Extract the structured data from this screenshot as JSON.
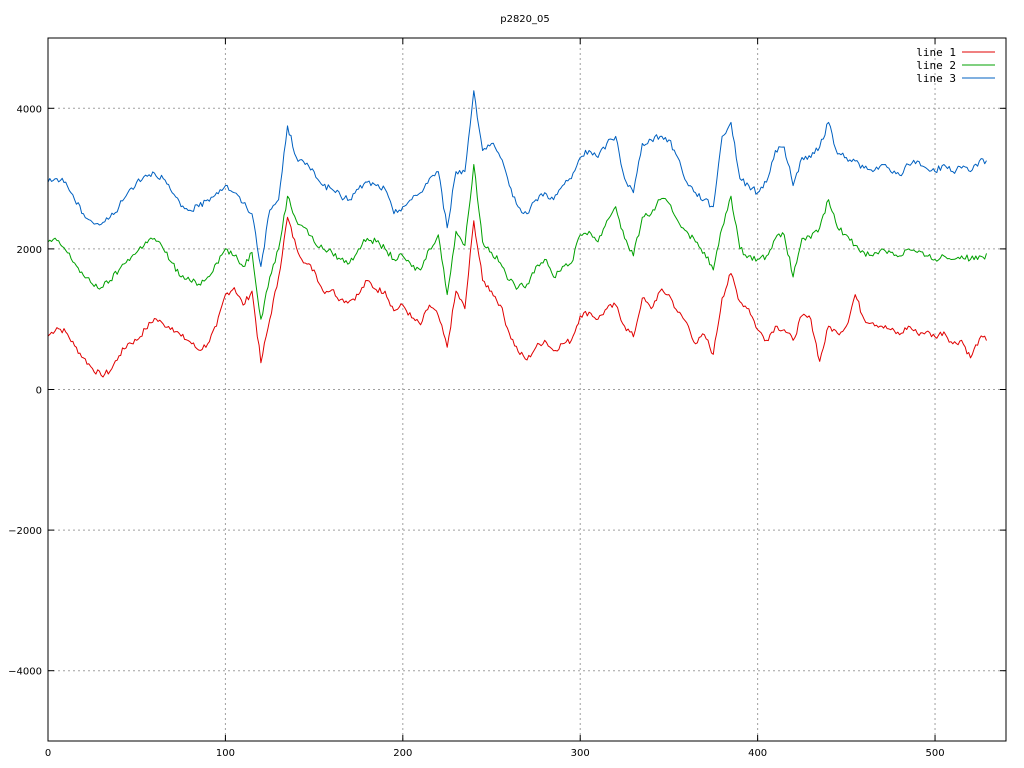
{
  "chart_data": {
    "type": "line",
    "title": "p2820_05",
    "xlabel": "",
    "ylabel": "",
    "xlim": [
      0,
      540
    ],
    "ylim": [
      -5000,
      5000
    ],
    "x_ticks": [
      0,
      100,
      200,
      300,
      400,
      500
    ],
    "y_ticks": [
      -4000,
      -2000,
      0,
      2000,
      4000
    ],
    "grid": true,
    "legend_position": "top-right",
    "x_step": 5,
    "series": [
      {
        "name": "line 1",
        "color": "#e00000",
        "values": [
          760,
          880,
          820,
          620,
          450,
          300,
          200,
          260,
          480,
          650,
          700,
          860,
          1010,
          930,
          880,
          760,
          680,
          560,
          650,
          900,
          1350,
          1450,
          1200,
          1400,
          380,
          1000,
          1600,
          2450,
          2020,
          1800,
          1700,
          1400,
          1420,
          1280,
          1260,
          1350,
          1550,
          1420,
          1400,
          1120,
          1200,
          1020,
          920,
          1200,
          1050,
          600,
          1400,
          1150,
          2400,
          1550,
          1400,
          1200,
          800,
          540,
          420,
          600,
          700,
          550,
          650,
          700,
          1050,
          1100,
          1000,
          1150,
          1200,
          900,
          750,
          1300,
          1150,
          1400,
          1350,
          1100,
          950,
          650,
          780,
          500,
          1300,
          1650,
          1250,
          1150,
          850,
          700,
          900,
          850,
          700,
          1050,
          1000,
          400,
          900,
          800,
          900,
          1350,
          1000,
          950,
          900,
          850,
          780,
          900,
          800,
          820,
          750,
          820,
          650,
          700,
          450,
          720
        ]
      },
      {
        "name": "line 2",
        "color": "#00a000",
        "values": [
          2100,
          2120,
          1980,
          1800,
          1620,
          1500,
          1450,
          1550,
          1700,
          1850,
          1950,
          2100,
          2150,
          2000,
          1800,
          1600,
          1550,
          1500,
          1600,
          1800,
          2000,
          1900,
          1750,
          1950,
          1000,
          1600,
          2000,
          2750,
          2400,
          2300,
          2100,
          2000,
          1950,
          1850,
          1800,
          2000,
          2150,
          2100,
          2000,
          1850,
          1900,
          1750,
          1700,
          2000,
          2200,
          1350,
          2250,
          2050,
          3200,
          2100,
          1950,
          1800,
          1550,
          1450,
          1500,
          1750,
          1850,
          1600,
          1750,
          1800,
          2200,
          2250,
          2100,
          2400,
          2600,
          2150,
          1900,
          2450,
          2500,
          2700,
          2650,
          2400,
          2250,
          2100,
          1950,
          1700,
          2300,
          2750,
          2000,
          1900,
          1850,
          1900,
          2150,
          2200,
          1600,
          2150,
          2150,
          2300,
          2700,
          2300,
          2200,
          2050,
          1950,
          1900,
          2000,
          1950,
          1900,
          2000,
          1950,
          1900,
          1850,
          1900,
          1850,
          1900,
          1850,
          1900
        ]
      },
      {
        "name": "line 3",
        "color": "#0060c0",
        "values": [
          2950,
          3000,
          2950,
          2700,
          2500,
          2380,
          2350,
          2450,
          2600,
          2800,
          2950,
          3050,
          3080,
          3000,
          2800,
          2600,
          2550,
          2600,
          2700,
          2800,
          2900,
          2800,
          2650,
          2500,
          1750,
          2550,
          2700,
          3750,
          3300,
          3200,
          3100,
          2900,
          2850,
          2750,
          2700,
          2850,
          2950,
          2900,
          2850,
          2500,
          2600,
          2700,
          2800,
          3000,
          3100,
          2300,
          3100,
          3100,
          4250,
          3400,
          3500,
          3300,
          2900,
          2600,
          2500,
          2700,
          2800,
          2700,
          2900,
          3000,
          3300,
          3400,
          3300,
          3500,
          3600,
          3000,
          2800,
          3500,
          3550,
          3600,
          3550,
          3300,
          2950,
          2800,
          2700,
          2600,
          3600,
          3800,
          3000,
          2900,
          2800,
          2950,
          3400,
          3450,
          2900,
          3300,
          3300,
          3450,
          3800,
          3350,
          3300,
          3250,
          3150,
          3100,
          3200,
          3100,
          3050,
          3200,
          3250,
          3150,
          3100,
          3200,
          3100,
          3150,
          3100,
          3250
        ]
      }
    ]
  }
}
